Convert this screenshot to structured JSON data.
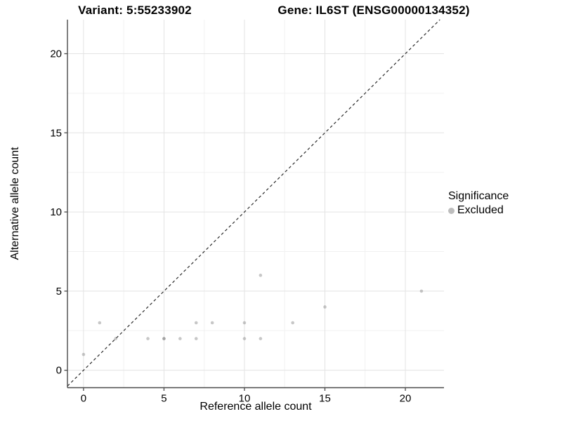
{
  "header": {
    "title_left": "Variant: 5:55233902",
    "title_right": "Gene: IL6ST (ENSG00000134352)"
  },
  "chart_data": {
    "type": "scatter",
    "title": "Variant: 5:55233902 — Gene: IL6ST (ENSG00000134352)",
    "xlabel": "Reference allele count",
    "ylabel": "Alternative allele count",
    "x_ticks": [
      0,
      5,
      10,
      15,
      20
    ],
    "y_ticks": [
      0,
      5,
      10,
      15,
      20
    ],
    "xlim": [
      -1.0,
      22.4
    ],
    "ylim": [
      -1.1,
      22.15
    ],
    "grid": "major and minor gridlines on, white background",
    "minor_step": 2.5,
    "identity_line": {
      "type": "y=x",
      "style": "dashed",
      "color": "#2b2b2b"
    },
    "series": [
      {
        "name": "Excluded",
        "point_color": "#7a7a7a",
        "point_alpha": 0.42,
        "points": [
          [
            0,
            1
          ],
          [
            1,
            3
          ],
          [
            2,
            2
          ],
          [
            4,
            2
          ],
          [
            5,
            2
          ],
          [
            5,
            2
          ],
          [
            6,
            2
          ],
          [
            7,
            2
          ],
          [
            7,
            3
          ],
          [
            8,
            3
          ],
          [
            10,
            2
          ],
          [
            10,
            3
          ],
          [
            11,
            2
          ],
          [
            11,
            6
          ],
          [
            13,
            3
          ],
          [
            15,
            4
          ],
          [
            21,
            5
          ]
        ]
      }
    ],
    "legend": {
      "position": "right",
      "title": "Significance",
      "items": [
        {
          "label": "Excluded",
          "key_color": "#bdbdbd"
        }
      ]
    },
    "colors": {
      "grid_major": "#e3e3e3",
      "grid_minor": "#f1f1f1",
      "axis_line": "#4a4a4a",
      "tick_mark": "#4a4a4a",
      "text": "#000000",
      "background": "#ffffff"
    }
  }
}
